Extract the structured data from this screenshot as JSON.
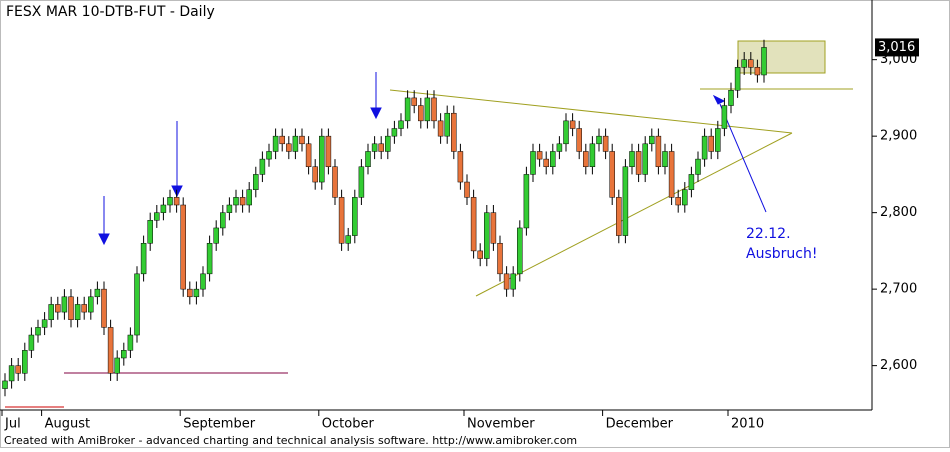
{
  "chart_data": {
    "type": "candlestick",
    "title": "FESX MAR 10-DTB-FUT - Daily",
    "footer": "Created with AmiBroker - advanced charting and technical analysis software. http://www.amibroker.com",
    "annotations": [
      "22.12.",
      "Ausbruch!"
    ],
    "up_color": "#33cc33",
    "down_color": "#e8743b",
    "ylim": [
      2542,
      3078
    ],
    "yticks": [
      {
        "value": 2600,
        "label": "2,600"
      },
      {
        "value": 2700,
        "label": "2,700"
      },
      {
        "value": 2800,
        "label": "2,800"
      },
      {
        "value": 2900,
        "label": "2,900"
      },
      {
        "value": 3000,
        "label": "3,000"
      }
    ],
    "last_tag": {
      "value": 3016,
      "label": "3,016"
    },
    "categories": [
      "Jul",
      null,
      null,
      null,
      null,
      null,
      "August",
      null,
      null,
      null,
      null,
      null,
      null,
      null,
      null,
      null,
      null,
      null,
      null,
      null,
      null,
      null,
      null,
      null,
      null,
      null,
      null,
      "September",
      null,
      null,
      null,
      null,
      null,
      null,
      null,
      null,
      null,
      null,
      null,
      null,
      null,
      null,
      null,
      null,
      null,
      null,
      null,
      null,
      "October",
      null,
      null,
      null,
      null,
      null,
      null,
      null,
      null,
      null,
      null,
      null,
      null,
      null,
      null,
      null,
      null,
      null,
      null,
      null,
      null,
      null,
      "November",
      null,
      null,
      null,
      null,
      null,
      null,
      null,
      null,
      null,
      null,
      null,
      null,
      null,
      null,
      null,
      null,
      null,
      null,
      null,
      null,
      "December",
      null,
      null,
      null,
      null,
      null,
      null,
      null,
      null,
      null,
      null,
      null,
      null,
      null,
      null,
      null,
      null,
      null,
      null,
      "2010",
      null,
      null,
      null,
      null,
      null
    ],
    "open": [
      2570,
      2580,
      2600,
      2590,
      2620,
      2640,
      2650,
      2660,
      2680,
      2670,
      2690,
      2660,
      2680,
      2670,
      2690,
      2700,
      2650,
      2590,
      2610,
      2620,
      2640,
      2720,
      2760,
      2790,
      2800,
      2810,
      2820,
      2810,
      2700,
      2690,
      2700,
      2720,
      2760,
      2780,
      2800,
      2810,
      2820,
      2810,
      2830,
      2850,
      2870,
      2880,
      2900,
      2890,
      2880,
      2900,
      2890,
      2860,
      2840,
      2900,
      2860,
      2820,
      2760,
      2770,
      2820,
      2860,
      2880,
      2890,
      2880,
      2900,
      2910,
      2920,
      2950,
      2940,
      2920,
      2950,
      2920,
      2900,
      2930,
      2880,
      2840,
      2820,
      2750,
      2740,
      2800,
      2760,
      2720,
      2700,
      2720,
      2780,
      2850,
      2880,
      2870,
      2860,
      2880,
      2890,
      2920,
      2910,
      2880,
      2860,
      2890,
      2900,
      2880,
      2820,
      2770,
      2860,
      2880,
      2850,
      2890,
      2900,
      2860,
      2880,
      2820,
      2810,
      2830,
      2850,
      2870,
      2900,
      2880,
      2910,
      2940,
      2960,
      2990,
      3000,
      2990,
      2980
    ],
    "high": [
      2590,
      2610,
      2610,
      2630,
      2650,
      2660,
      2670,
      2690,
      2690,
      2700,
      2700,
      2690,
      2690,
      2700,
      2710,
      2710,
      2660,
      2620,
      2630,
      2650,
      2730,
      2770,
      2800,
      2810,
      2820,
      2830,
      2830,
      2820,
      2710,
      2710,
      2730,
      2770,
      2790,
      2810,
      2820,
      2830,
      2830,
      2840,
      2860,
      2880,
      2890,
      2910,
      2910,
      2900,
      2910,
      2910,
      2900,
      2870,
      2910,
      2910,
      2870,
      2830,
      2780,
      2830,
      2870,
      2890,
      2900,
      2900,
      2910,
      2920,
      2930,
      2960,
      2960,
      2950,
      2960,
      2960,
      2930,
      2940,
      2940,
      2890,
      2850,
      2830,
      2760,
      2810,
      2810,
      2770,
      2730,
      2730,
      2790,
      2860,
      2890,
      2890,
      2880,
      2890,
      2900,
      2930,
      2930,
      2920,
      2890,
      2900,
      2910,
      2910,
      2890,
      2830,
      2870,
      2890,
      2890,
      2900,
      2910,
      2910,
      2890,
      2890,
      2830,
      2840,
      2860,
      2880,
      2910,
      2910,
      2920,
      2950,
      2970,
      3000,
      3010,
      3010,
      3000,
      3026
    ],
    "low": [
      2560,
      2570,
      2580,
      2580,
      2610,
      2630,
      2640,
      2650,
      2660,
      2660,
      2650,
      2650,
      2660,
      2660,
      2680,
      2640,
      2580,
      2580,
      2600,
      2610,
      2630,
      2710,
      2750,
      2780,
      2790,
      2800,
      2800,
      2690,
      2680,
      2680,
      2690,
      2710,
      2750,
      2770,
      2790,
      2800,
      2800,
      2800,
      2820,
      2840,
      2860,
      2870,
      2880,
      2870,
      2870,
      2880,
      2850,
      2830,
      2830,
      2850,
      2810,
      2750,
      2750,
      2760,
      2810,
      2850,
      2870,
      2870,
      2870,
      2890,
      2900,
      2910,
      2930,
      2910,
      2910,
      2910,
      2890,
      2890,
      2870,
      2830,
      2810,
      2740,
      2730,
      2730,
      2750,
      2710,
      2690,
      2690,
      2710,
      2770,
      2840,
      2860,
      2850,
      2850,
      2870,
      2880,
      2900,
      2870,
      2850,
      2850,
      2880,
      2870,
      2810,
      2760,
      2760,
      2850,
      2840,
      2840,
      2880,
      2850,
      2850,
      2810,
      2800,
      2800,
      2820,
      2840,
      2860,
      2870,
      2870,
      2900,
      2930,
      2950,
      2980,
      2980,
      2970,
      2970
    ],
    "close": [
      2580,
      2600,
      2590,
      2620,
      2640,
      2650,
      2660,
      2680,
      2670,
      2690,
      2660,
      2680,
      2670,
      2690,
      2700,
      2650,
      2590,
      2610,
      2620,
      2640,
      2720,
      2760,
      2790,
      2800,
      2810,
      2820,
      2810,
      2700,
      2690,
      2700,
      2720,
      2760,
      2780,
      2800,
      2810,
      2820,
      2810,
      2830,
      2850,
      2870,
      2880,
      2900,
      2890,
      2880,
      2900,
      2890,
      2860,
      2840,
      2900,
      2860,
      2820,
      2760,
      2770,
      2820,
      2860,
      2880,
      2890,
      2880,
      2900,
      2910,
      2920,
      2950,
      2940,
      2920,
      2950,
      2920,
      2900,
      2930,
      2880,
      2840,
      2820,
      2750,
      2740,
      2800,
      2760,
      2720,
      2700,
      2720,
      2780,
      2850,
      2880,
      2870,
      2860,
      2880,
      2890,
      2920,
      2910,
      2880,
      2860,
      2890,
      2900,
      2880,
      2820,
      2770,
      2860,
      2880,
      2850,
      2890,
      2900,
      2860,
      2880,
      2820,
      2810,
      2830,
      2850,
      2870,
      2900,
      2880,
      2910,
      2940,
      2960,
      2990,
      3000,
      2990,
      2980,
      3016
    ]
  }
}
